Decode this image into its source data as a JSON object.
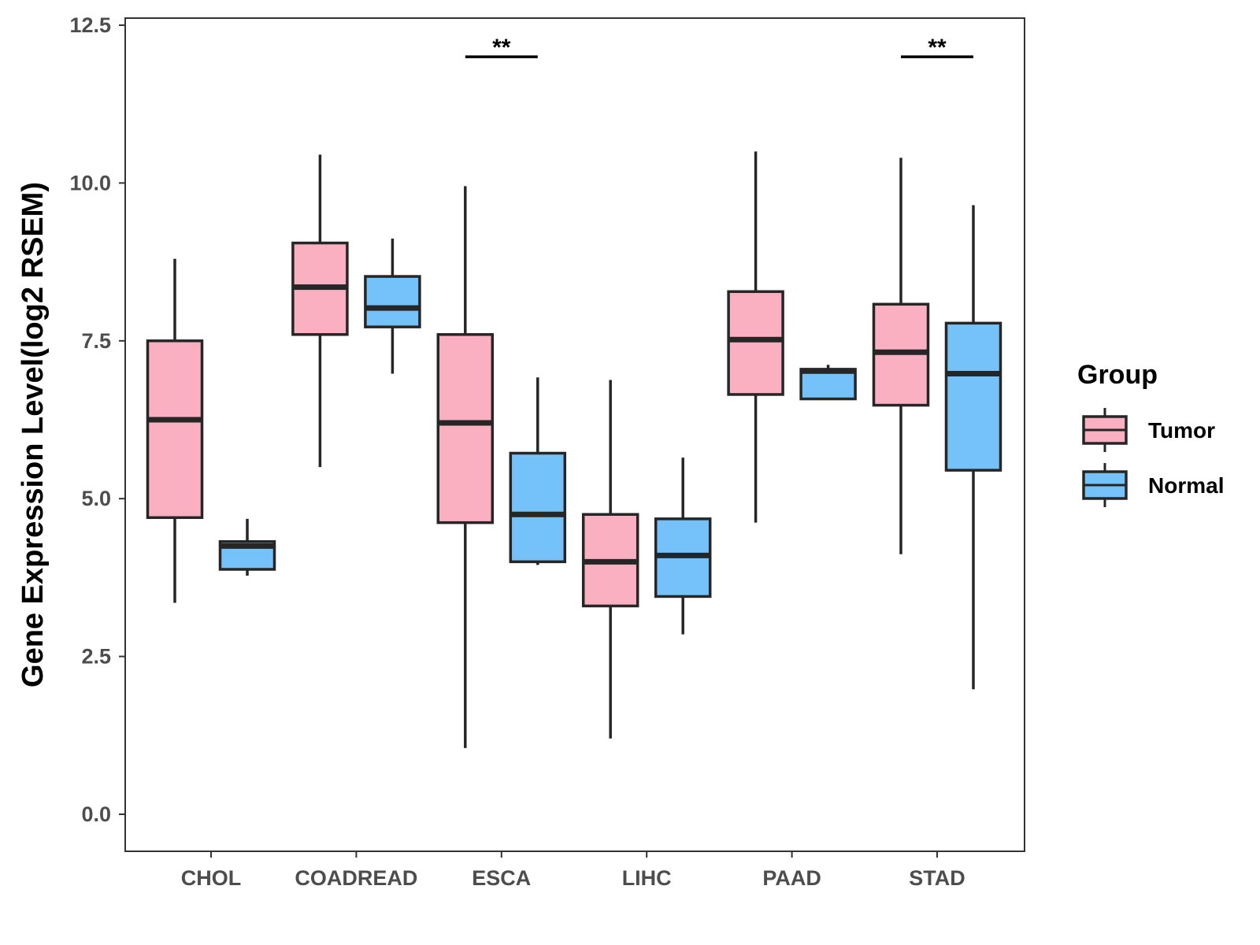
{
  "chart_data": {
    "type": "boxplot",
    "title": "",
    "xlabel": "",
    "ylabel": "Gene Expression Level(log2 RSEM)",
    "ylim": [
      -0.6,
      12.6
    ],
    "yticks": [
      0.0,
      2.5,
      5.0,
      7.5,
      10.0,
      12.5
    ],
    "ytick_labels": [
      "0.0",
      "2.5",
      "5.0",
      "7.5",
      "10.0",
      "12.5"
    ],
    "grid": false,
    "legend": {
      "title": "Group",
      "position": "right",
      "entries": [
        "Tumor",
        "Normal"
      ]
    },
    "series_colors": {
      "Tumor": "#fbb0c2",
      "Normal": "#75c1f9"
    },
    "stroke_color": "#262626",
    "categories": [
      "CHOL",
      "COADREAD",
      "ESCA",
      "LIHC",
      "PAAD",
      "STAD"
    ],
    "series": [
      {
        "name": "Tumor",
        "boxes": [
          {
            "min": 3.35,
            "q1": 4.7,
            "median": 6.25,
            "q3": 7.5,
            "max": 8.8
          },
          {
            "min": 5.5,
            "q1": 7.6,
            "median": 8.35,
            "q3": 9.05,
            "max": 10.45
          },
          {
            "min": 1.05,
            "q1": 4.62,
            "median": 6.2,
            "q3": 7.6,
            "max": 9.95
          },
          {
            "min": 1.2,
            "q1": 3.3,
            "median": 4.0,
            "q3": 4.75,
            "max": 6.88
          },
          {
            "min": 4.62,
            "q1": 6.65,
            "median": 7.52,
            "q3": 8.28,
            "max": 10.5
          },
          {
            "min": 4.12,
            "q1": 6.48,
            "median": 7.32,
            "q3": 8.08,
            "max": 10.4
          }
        ]
      },
      {
        "name": "Normal",
        "boxes": [
          {
            "min": 3.78,
            "q1": 3.88,
            "median": 4.25,
            "q3": 4.32,
            "max": 4.68
          },
          {
            "min": 6.98,
            "q1": 7.72,
            "median": 8.02,
            "q3": 8.52,
            "max": 9.12
          },
          {
            "min": 3.95,
            "q1": 4.0,
            "median": 4.75,
            "q3": 5.72,
            "max": 6.92
          },
          {
            "min": 2.85,
            "q1": 3.45,
            "median": 4.1,
            "q3": 4.68,
            "max": 5.65
          },
          {
            "min": 6.58,
            "q1": 6.58,
            "median": 7.02,
            "q3": 7.05,
            "max": 7.12
          },
          {
            "min": 1.98,
            "q1": 5.45,
            "median": 6.98,
            "q3": 7.78,
            "max": 9.65
          }
        ]
      }
    ],
    "annotations": [
      {
        "category": "ESCA",
        "text": "**",
        "y": 12.0
      },
      {
        "category": "STAD",
        "text": "**",
        "y": 12.0
      }
    ]
  }
}
